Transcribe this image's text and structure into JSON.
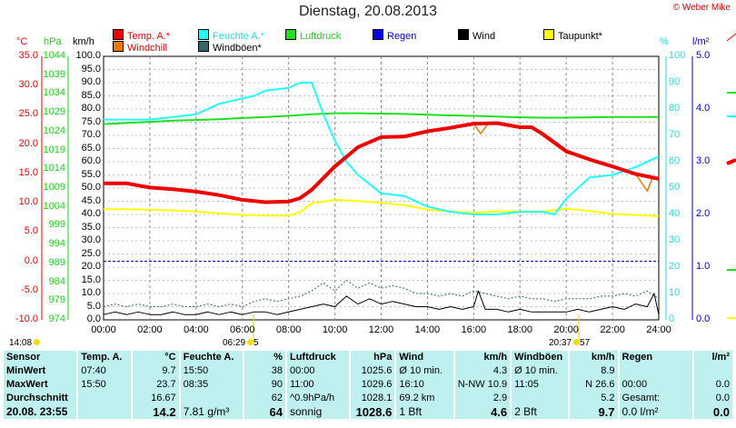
{
  "title": "Dienstag, 20.08.2013",
  "copyright": "© Weber Mike",
  "colors": {
    "temp": "#ee0000",
    "windchill": "#ee7700",
    "humidity": "#22ffff",
    "pressure": "#22dd22",
    "rain": "#0000ee",
    "wind": "#000000",
    "dewpoint": "#ffff00",
    "gust": "#336666",
    "grid": "#888888",
    "stats_bg": "#bff0f0"
  },
  "legend": [
    {
      "label": "Temp. A.*",
      "color": "#ee0000"
    },
    {
      "label": "Windchill",
      "color": "#ee7700"
    },
    {
      "label": "Feuchte A.*",
      "color": "#22ffff"
    },
    {
      "label": "Windböen*",
      "color": "#336666"
    },
    {
      "label": "Luftdruck",
      "color": "#22dd22"
    },
    {
      "label": "Regen",
      "color": "#0000ee"
    },
    {
      "label": "Wind",
      "color": "#000000"
    },
    {
      "label": "Taupunkt*",
      "color": "#ffff00"
    }
  ],
  "axes": {
    "temp_unit": "°C",
    "pressure_unit": "hPa",
    "wind_unit": "km/h",
    "humidity_unit": "%",
    "rain_unit": "l/m²",
    "temp_ticks": [
      "35.0",
      "30.0",
      "25.0",
      "20.0",
      "15.0",
      "10.0",
      "5.0",
      "0.0",
      "-5.0",
      "-10.0"
    ],
    "pressure_ticks": [
      "1044",
      "1039",
      "1034",
      "1029",
      "1024",
      "1019",
      "1014",
      "1009",
      "1004",
      "999",
      "994",
      "989",
      "984",
      "979",
      "974"
    ],
    "wind_ticks": [
      "100.0",
      "95.0",
      "90.0",
      "85.0",
      "80.0",
      "75.0",
      "70.0",
      "65.0",
      "60.0",
      "55.0",
      "50.0",
      "45.0",
      "40.0",
      "35.0",
      "30.0",
      "25.0",
      "20.0",
      "15.0",
      "10.0",
      "5.0",
      "0.0"
    ],
    "humidity_ticks": [
      "100",
      "90",
      "80",
      "70",
      "60",
      "50",
      "40",
      "30",
      "20",
      "10",
      "0"
    ],
    "rain_ticks": [
      "5.0",
      "4.0",
      "3.0",
      "2.0",
      "1.0",
      "0.0"
    ],
    "time_ticks": [
      "00:00",
      "02:00",
      "04:00",
      "06:00",
      "08:00",
      "10:00",
      "12:00",
      "14:00",
      "16:00",
      "18:00",
      "20:00",
      "22:00",
      "24:00"
    ]
  },
  "markers": {
    "left_time": "14:08",
    "sunrise_time": "06:29",
    "sunrise_label": "5",
    "sunset_time": "20:37",
    "sunset_label": "57"
  },
  "chart_data": {
    "type": "line",
    "title": "Dienstag, 20.08.2013",
    "x_range": [
      0,
      24
    ],
    "temp_range": [
      -10,
      35
    ],
    "humidity_range": [
      0,
      100
    ],
    "wind_range": [
      0,
      100
    ],
    "pressure_range": [
      974,
      1044
    ],
    "rain_range": [
      0,
      5
    ],
    "series": [
      {
        "name": "Temp. A.*",
        "axis": "temp",
        "x": [
          0,
          1,
          2,
          3,
          4,
          5,
          6,
          7,
          8,
          8.5,
          9,
          9.5,
          10,
          11,
          12,
          13,
          14,
          15,
          16,
          17,
          18,
          18.5,
          19,
          20,
          21,
          22,
          23,
          24
        ],
        "y": [
          13.3,
          13.3,
          12.6,
          12.3,
          11.9,
          11.3,
          10.5,
          10.1,
          10.2,
          10.8,
          12.2,
          14.2,
          16.2,
          19.5,
          21.2,
          21.3,
          22.2,
          22.8,
          23.5,
          23.6,
          22.9,
          22.9,
          21.7,
          18.8,
          17.4,
          16.2,
          14.9,
          14.1
        ]
      },
      {
        "name": "Windchill",
        "axis": "temp",
        "x": [
          0,
          1,
          2,
          3,
          4,
          5,
          6,
          7,
          8,
          8.5,
          9,
          9.5,
          10,
          11,
          12,
          13,
          14,
          15,
          16,
          16.3,
          16.6,
          17,
          18,
          18.5,
          19,
          20,
          21,
          22,
          23,
          23.5,
          23.7,
          24
        ],
        "y": [
          13.3,
          13.3,
          12.6,
          12.3,
          11.9,
          11.3,
          10.5,
          10.1,
          10.2,
          10.8,
          12.5,
          14.5,
          16.5,
          19.5,
          21.2,
          21.3,
          22.2,
          22.8,
          23.5,
          21.8,
          23.4,
          23.6,
          22.9,
          22.9,
          21.4,
          18.5,
          17.4,
          16.2,
          14.9,
          12.0,
          14.0,
          14.1
        ]
      },
      {
        "name": "Feuchte A.*",
        "axis": "humidity",
        "x": [
          0,
          1,
          2,
          3,
          4,
          5,
          5.5,
          6,
          6.5,
          7,
          8,
          8.5,
          9,
          9.5,
          10,
          10.5,
          11,
          12,
          13,
          14,
          15,
          16,
          17,
          18,
          19,
          19.5,
          20,
          21,
          22,
          23,
          24
        ],
        "y": [
          76,
          76,
          76,
          77,
          78,
          82,
          83,
          84,
          85,
          87,
          88,
          90,
          90,
          78,
          68,
          60,
          55,
          48,
          47,
          43,
          41,
          40,
          40,
          41,
          41,
          40,
          46,
          54,
          55,
          58,
          62
        ]
      },
      {
        "name": "Luftdruck",
        "axis": "pressure",
        "x": [
          0,
          1,
          2,
          3,
          4,
          5,
          6,
          7,
          8,
          9,
          10,
          11,
          12,
          13,
          14,
          15,
          16,
          17,
          18,
          19,
          20,
          21,
          22,
          23,
          24
        ],
        "y": [
          1026.0,
          1026.3,
          1026.6,
          1026.9,
          1027.1,
          1027.3,
          1027.6,
          1027.9,
          1028.2,
          1028.6,
          1028.9,
          1028.9,
          1028.8,
          1028.7,
          1028.5,
          1028.3,
          1028.2,
          1028.0,
          1027.8,
          1027.7,
          1027.7,
          1027.8,
          1027.9,
          1027.9,
          1027.9
        ]
      },
      {
        "name": "Taupunkt*",
        "axis": "temp",
        "x": [
          0,
          1,
          2,
          3,
          4,
          5,
          6,
          7,
          8,
          8.5,
          9,
          10,
          11,
          12,
          13,
          14,
          15,
          16,
          17,
          18,
          19,
          20,
          21,
          22,
          23,
          24
        ],
        "y": [
          8.9,
          8.9,
          8.8,
          8.7,
          8.5,
          8.2,
          7.9,
          7.8,
          7.8,
          8.4,
          9.9,
          10.5,
          10.3,
          10.0,
          9.6,
          8.8,
          8.5,
          8.3,
          8.5,
          8.5,
          8.5,
          9.0,
          8.6,
          8.1,
          7.9,
          7.7
        ]
      },
      {
        "name": "Wind",
        "axis": "wind",
        "x": [
          0,
          0.5,
          1,
          1.5,
          2,
          2.5,
          3,
          3.5,
          4,
          4.5,
          5,
          5.5,
          6,
          6.5,
          7,
          7.5,
          8,
          8.5,
          9,
          9.5,
          10,
          10.5,
          11,
          11.5,
          12,
          12.5,
          13,
          13.5,
          14,
          14.5,
          15,
          15.5,
          16,
          16.2,
          16.5,
          17,
          17.5,
          18,
          18.5,
          19,
          19.5,
          20,
          20.5,
          21,
          21.5,
          22,
          22.5,
          23,
          23.5,
          23.8,
          24
        ],
        "y": [
          2,
          3,
          2,
          3,
          2,
          2,
          3,
          2,
          2,
          3,
          2,
          3,
          2,
          3,
          3,
          2,
          3,
          4,
          5,
          6,
          5,
          9,
          6,
          8,
          6,
          7,
          6,
          5,
          5,
          4,
          5,
          4,
          5,
          11,
          4,
          4,
          3,
          4,
          3,
          3,
          3,
          3,
          4,
          3,
          4,
          5,
          4,
          6,
          5,
          10,
          2
        ]
      },
      {
        "name": "Windböen*",
        "axis": "wind",
        "x": [
          0,
          0.5,
          1,
          1.5,
          2,
          2.5,
          3,
          3.5,
          4,
          4.5,
          5,
          5.5,
          6,
          6.5,
          7,
          7.5,
          8,
          8.5,
          9,
          9.5,
          10,
          10.5,
          11,
          11.5,
          12,
          12.5,
          13,
          13.5,
          14,
          14.5,
          15,
          15.5,
          16,
          16.5,
          17,
          17.5,
          18,
          18.5,
          19,
          19.5,
          20,
          20.5,
          21,
          21.5,
          22,
          22.5,
          23,
          23.5,
          24
        ],
        "y": [
          5,
          6,
          5,
          6,
          5,
          5,
          6,
          5,
          5,
          6,
          5,
          6,
          5,
          7,
          8,
          7,
          8,
          9,
          11,
          14,
          11,
          15,
          12,
          14,
          12,
          13,
          12,
          10,
          10,
          9,
          10,
          9,
          11,
          10,
          9,
          8,
          9,
          8,
          8,
          7,
          8,
          8,
          8,
          9,
          9,
          10,
          9,
          11,
          8
        ]
      }
    ]
  },
  "stats": {
    "header": {
      "c1": "Sensor",
      "c2": "Temp. A.",
      "c3": "°C",
      "c4": "Feuchte A.",
      "c5": "%",
      "c6": "Luftdruck",
      "c7": "hPa",
      "c8": "Wind",
      "c9": "km/h",
      "c10": "Windböen",
      "c11": "km/h",
      "c12": "Regen",
      "c13": "l/m²"
    },
    "min": {
      "label": "MinWert",
      "temp_time": "07:40",
      "temp_val": "9.7",
      "hum_time": "15:50",
      "hum_val": "38",
      "press_time": "00:00",
      "press_val": "1025.6",
      "wind_label": "Ø 10 min.",
      "wind_val": "4.3",
      "gust_label": "Ø 10 min.",
      "gust_val": "8.9",
      "rain_label": "",
      "rain_val": ""
    },
    "max": {
      "label": "MaxWert",
      "temp_time": "15:50",
      "temp_val": "23.7",
      "hum_time": "08:35",
      "hum_val": "90",
      "press_time": "11:00",
      "press_val": "1029.6",
      "wind_label": "16:10",
      "wind_mid": "N-NW",
      "wind_val": "10.9",
      "gust_label": "11:05",
      "gust_mid": "N",
      "gust_val": "26.6",
      "rain_label": "00:00",
      "rain_val": "0.0"
    },
    "avg": {
      "label": "Durchschnitt",
      "temp_val": "16.67",
      "hum_val": "62",
      "press_label": "^0.9hPa/h",
      "press_val": "1028.1",
      "wind_label": "69.2 km",
      "wind_val": "2.9",
      "gust_val": "5.2",
      "rain_label": "Gesamt:",
      "rain_val": "0.0"
    },
    "last": {
      "label": "20.08. 23:55",
      "temp_val": "14.2",
      "hum_label": "7.81 g/m³",
      "hum_val": "64",
      "press_label": "sonnig",
      "press_val": "1028.6",
      "wind_label": "1 Bft",
      "wind_val": "4.6",
      "gust_label": "2 Bft",
      "gust_val": "9.7",
      "rain_label": "0.0 l/m²",
      "rain_val": "0.0"
    }
  }
}
